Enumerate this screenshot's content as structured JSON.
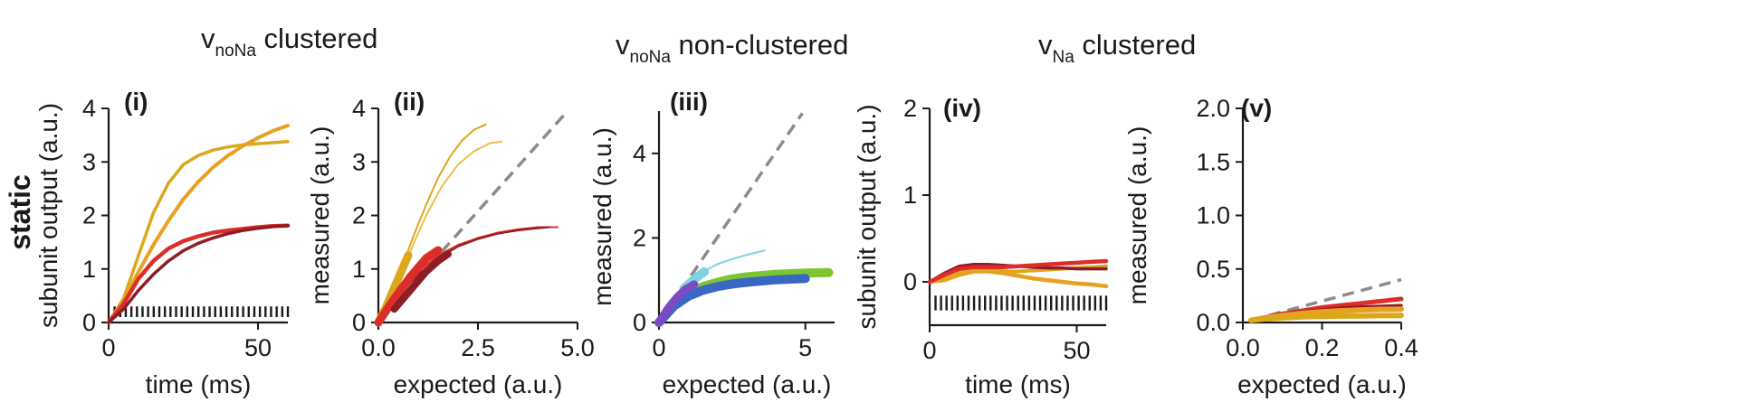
{
  "figure": {
    "row_label": "static",
    "groups": [
      {
        "name": "v",
        "sub": "noNa",
        "rest": " clustered"
      },
      {
        "name": "v",
        "sub": "noNa",
        "rest": " non-clustered"
      },
      {
        "name": "v",
        "sub": "Na",
        "rest": " clustered"
      }
    ]
  },
  "colors": {
    "yellow": "#dba81c",
    "orange": "#e8a020",
    "red": "#dc2d2a",
    "dark_red": "#8e1c24",
    "light_yellow": "#e8c24a",
    "cyan": "#7fd2e0",
    "green": "#7ec631",
    "blue": "#3a66c4",
    "purple": "#7a4bc4",
    "diag": "#8c8c8c",
    "axis": "#1a1a1a"
  },
  "chart_data": [
    {
      "panel": "(i)",
      "type": "line",
      "xlabel": "time (ms)",
      "ylabel": "subunit output (a.u.)",
      "xlim": [
        0,
        60
      ],
      "ylim": [
        0,
        4
      ],
      "xticks": [
        0,
        50
      ],
      "xtick_labels": [
        "0",
        "50"
      ],
      "yticks": [
        0,
        1,
        2,
        3,
        4
      ],
      "ytick_labels": [
        "0",
        "1",
        "2",
        "3",
        "4"
      ],
      "stimulus": {
        "start": 2,
        "end": 60,
        "count": 32,
        "level": 0.3
      },
      "series": [
        {
          "name": "yellow-saturating",
          "color": "yellow",
          "width": 3.5,
          "x": [
            0,
            5,
            10,
            15,
            20,
            25,
            30,
            35,
            40,
            45,
            50,
            55,
            60
          ],
          "y": [
            0,
            0.45,
            1.25,
            2.05,
            2.6,
            2.95,
            3.12,
            3.22,
            3.28,
            3.32,
            3.34,
            3.36,
            3.38
          ]
        },
        {
          "name": "orange-rising",
          "color": "orange",
          "width": 4,
          "x": [
            0,
            5,
            10,
            15,
            20,
            25,
            30,
            35,
            40,
            45,
            50,
            55,
            60
          ],
          "y": [
            0,
            0.4,
            0.95,
            1.45,
            1.9,
            2.3,
            2.63,
            2.9,
            3.12,
            3.3,
            3.45,
            3.58,
            3.68
          ]
        },
        {
          "name": "red",
          "color": "red",
          "width": 4.5,
          "x": [
            0,
            5,
            10,
            15,
            20,
            25,
            30,
            35,
            40,
            45,
            50,
            55,
            60
          ],
          "y": [
            0,
            0.35,
            0.82,
            1.15,
            1.38,
            1.52,
            1.61,
            1.68,
            1.72,
            1.75,
            1.78,
            1.8,
            1.81
          ]
        },
        {
          "name": "dark-red",
          "color": "dark_red",
          "width": 3.5,
          "x": [
            0,
            5,
            10,
            15,
            20,
            25,
            30,
            35,
            40,
            45,
            50,
            55,
            60
          ],
          "y": [
            0,
            0.25,
            0.6,
            0.9,
            1.15,
            1.34,
            1.48,
            1.58,
            1.66,
            1.72,
            1.76,
            1.79,
            1.81
          ]
        }
      ]
    },
    {
      "panel": "(ii)",
      "type": "line",
      "xlabel": "expected (a.u.)",
      "ylabel": "measured (a.u.)",
      "xlim": [
        0,
        5
      ],
      "ylim": [
        0,
        4
      ],
      "xticks": [
        0,
        2.5,
        5
      ],
      "xtick_labels": [
        "0.0",
        "2.5",
        "5.0"
      ],
      "yticks": [
        0,
        1,
        2,
        3,
        4
      ],
      "ytick_labels": [
        "0",
        "1",
        "2",
        "3",
        "4"
      ],
      "diagonal": {
        "x": [
          0,
          4.75
        ],
        "y": [
          0,
          3.95
        ]
      },
      "series": [
        {
          "name": "yellow-thin-a",
          "color": "yellow",
          "width": 2,
          "x": [
            0,
            0.3,
            0.6,
            0.9,
            1.2,
            1.5,
            1.8,
            2.1,
            2.4,
            2.7
          ],
          "y": [
            0,
            0.5,
            1.05,
            1.65,
            2.2,
            2.7,
            3.1,
            3.4,
            3.6,
            3.7
          ]
        },
        {
          "name": "yellow-thin-b",
          "color": "light_yellow",
          "width": 2,
          "x": [
            0,
            0.3,
            0.6,
            0.9,
            1.2,
            1.6,
            2.0,
            2.4,
            2.8,
            3.1
          ],
          "y": [
            0,
            0.45,
            0.95,
            1.5,
            2.0,
            2.55,
            2.95,
            3.2,
            3.35,
            3.38
          ]
        },
        {
          "name": "yellow-thick",
          "color": "yellow",
          "width": 9,
          "x": [
            0,
            0.2,
            0.4,
            0.6,
            0.75
          ],
          "y": [
            0,
            0.3,
            0.65,
            1.0,
            1.25
          ]
        },
        {
          "name": "red-thin",
          "color": "red",
          "width": 2,
          "x": [
            0,
            0.5,
            1.0,
            1.5,
            2.0,
            2.5,
            3.0,
            3.5,
            4.0,
            4.5
          ],
          "y": [
            0,
            0.55,
            0.95,
            1.25,
            1.45,
            1.58,
            1.68,
            1.74,
            1.78,
            1.78
          ]
        },
        {
          "name": "dark-red-thin",
          "color": "dark_red",
          "width": 2,
          "x": [
            0,
            0.5,
            1.0,
            1.5,
            2.0,
            2.5,
            3.0,
            3.5,
            4.0,
            4.3
          ],
          "y": [
            0,
            0.5,
            0.9,
            1.2,
            1.42,
            1.56,
            1.66,
            1.72,
            1.76,
            1.78
          ]
        },
        {
          "name": "red-thick",
          "color": "red",
          "width": 9,
          "x": [
            0,
            0.4,
            0.8,
            1.2,
            1.5
          ],
          "y": [
            0,
            0.45,
            0.85,
            1.2,
            1.35
          ]
        },
        {
          "name": "dark-red-thick",
          "color": "dark_red",
          "width": 8,
          "x": [
            0.4,
            0.8,
            1.2,
            1.5,
            1.75
          ],
          "y": [
            0.25,
            0.6,
            0.95,
            1.15,
            1.28
          ]
        }
      ]
    },
    {
      "panel": "(iii)",
      "type": "line",
      "xlabel": "expected (a.u.)",
      "ylabel": "measured (a.u.)",
      "xlim": [
        0,
        6
      ],
      "ylim": [
        0,
        5
      ],
      "xticks": [
        0,
        5
      ],
      "xtick_labels": [
        "0",
        "5"
      ],
      "yticks": [
        0,
        2,
        4
      ],
      "ytick_labels": [
        "0",
        "2",
        "4"
      ],
      "diagonal": {
        "x": [
          0,
          4.9
        ],
        "y": [
          0,
          4.95
        ]
      },
      "series": [
        {
          "name": "cyan-thin",
          "color": "cyan",
          "width": 2,
          "x": [
            0,
            0.5,
            1.0,
            1.5,
            2.0,
            2.5,
            3.0,
            3.6
          ],
          "y": [
            0,
            0.55,
            0.95,
            1.2,
            1.38,
            1.5,
            1.6,
            1.7
          ]
        },
        {
          "name": "green-thick",
          "color": "green",
          "width": 10,
          "x": [
            0,
            0.5,
            1.0,
            1.5,
            2.0,
            2.5,
            3.0,
            4.0,
            5.0,
            5.8
          ],
          "y": [
            0,
            0.4,
            0.68,
            0.85,
            0.95,
            1.03,
            1.08,
            1.14,
            1.17,
            1.18
          ]
        },
        {
          "name": "blue-thick",
          "color": "blue",
          "width": 10,
          "x": [
            0,
            0.5,
            1.0,
            1.5,
            2.0,
            2.5,
            3.0,
            4.0,
            5.0
          ],
          "y": [
            0,
            0.38,
            0.62,
            0.76,
            0.85,
            0.91,
            0.95,
            1.01,
            1.04
          ]
        },
        {
          "name": "cyan-thick",
          "color": "cyan",
          "width": 10,
          "x": [
            0.85,
            1.2,
            1.55
          ],
          "y": [
            0.8,
            1.02,
            1.2
          ]
        },
        {
          "name": "purple-thick",
          "color": "purple",
          "width": 9,
          "x": [
            0,
            0.3,
            0.6,
            0.9,
            1.2
          ],
          "y": [
            0,
            0.32,
            0.58,
            0.78,
            0.9
          ]
        }
      ]
    },
    {
      "panel": "(iv)",
      "type": "line",
      "xlabel": "time (ms)",
      "ylabel": "subunit output (a.u.)",
      "xlim": [
        0,
        60
      ],
      "ylim": [
        -0.5,
        2
      ],
      "xticks": [
        0,
        50
      ],
      "xtick_labels": [
        "0",
        "50"
      ],
      "yticks": [
        0,
        1,
        2
      ],
      "ytick_labels": [
        "0",
        "1",
        "2"
      ],
      "stimulus": {
        "start": 2,
        "end": 60,
        "count": 32,
        "level": -0.33
      },
      "series": [
        {
          "name": "orange-dipping",
          "color": "orange",
          "width": 4.5,
          "x": [
            0,
            5,
            10,
            15,
            20,
            25,
            30,
            35,
            40,
            45,
            50,
            55,
            60
          ],
          "y": [
            0,
            0.02,
            0.08,
            0.12,
            0.12,
            0.1,
            0.07,
            0.04,
            0.02,
            0.0,
            -0.02,
            -0.03,
            -0.05
          ]
        },
        {
          "name": "yellow",
          "color": "yellow",
          "width": 4,
          "x": [
            0,
            5,
            10,
            15,
            20,
            25,
            30,
            35,
            40,
            45,
            50,
            55,
            60
          ],
          "y": [
            0,
            0.06,
            0.12,
            0.15,
            0.14,
            0.12,
            0.12,
            0.13,
            0.14,
            0.15,
            0.16,
            0.17,
            0.18
          ]
        },
        {
          "name": "dark-red",
          "color": "dark_red",
          "width": 3.5,
          "x": [
            0,
            5,
            10,
            15,
            20,
            25,
            30,
            35,
            40,
            45,
            50,
            55,
            60
          ],
          "y": [
            0,
            0.1,
            0.18,
            0.2,
            0.2,
            0.19,
            0.18,
            0.17,
            0.16,
            0.16,
            0.15,
            0.15,
            0.15
          ]
        },
        {
          "name": "red",
          "color": "red",
          "width": 4.5,
          "x": [
            0,
            5,
            10,
            15,
            20,
            25,
            30,
            35,
            40,
            45,
            50,
            55,
            60
          ],
          "y": [
            0,
            0.08,
            0.15,
            0.17,
            0.17,
            0.17,
            0.18,
            0.19,
            0.2,
            0.21,
            0.22,
            0.23,
            0.24
          ]
        }
      ]
    },
    {
      "panel": "(v)",
      "type": "line",
      "xlabel": "expected (a.u.)",
      "ylabel": "measured (a.u.)",
      "xlim": [
        0,
        0.4
      ],
      "ylim": [
        0,
        2
      ],
      "xticks": [
        0,
        0.2,
        0.4
      ],
      "xtick_labels": [
        "0.0",
        "0.2",
        "0.4"
      ],
      "yticks": [
        0,
        0.5,
        1.0,
        1.5,
        2.0
      ],
      "ytick_labels": [
        "0.0",
        "0.5",
        "1.0",
        "1.5",
        "2.0"
      ],
      "diagonal": {
        "x": [
          0.02,
          0.4
        ],
        "y": [
          0.02,
          0.4
        ]
      },
      "series": [
        {
          "name": "red",
          "color": "red",
          "width": 5,
          "x": [
            0.02,
            0.06,
            0.1,
            0.15,
            0.2,
            0.25,
            0.3,
            0.35,
            0.4
          ],
          "y": [
            0.02,
            0.05,
            0.08,
            0.11,
            0.14,
            0.16,
            0.18,
            0.2,
            0.22
          ]
        },
        {
          "name": "dark-red",
          "color": "dark_red",
          "width": 3.5,
          "x": [
            0.02,
            0.06,
            0.1,
            0.15,
            0.2,
            0.25,
            0.3,
            0.35,
            0.4
          ],
          "y": [
            0.02,
            0.05,
            0.075,
            0.1,
            0.12,
            0.135,
            0.145,
            0.152,
            0.158
          ]
        },
        {
          "name": "orange",
          "color": "orange",
          "width": 6,
          "x": [
            0.02,
            0.06,
            0.1,
            0.15,
            0.2,
            0.25,
            0.3,
            0.35,
            0.4
          ],
          "y": [
            0.02,
            0.045,
            0.065,
            0.085,
            0.1,
            0.11,
            0.117,
            0.122,
            0.125
          ]
        },
        {
          "name": "yellow",
          "color": "yellow",
          "width": 6,
          "x": [
            0.02,
            0.06,
            0.1,
            0.15,
            0.2,
            0.25,
            0.3,
            0.35,
            0.4
          ],
          "y": [
            0.02,
            0.035,
            0.045,
            0.052,
            0.057,
            0.06,
            0.062,
            0.064,
            0.066
          ]
        }
      ]
    }
  ]
}
